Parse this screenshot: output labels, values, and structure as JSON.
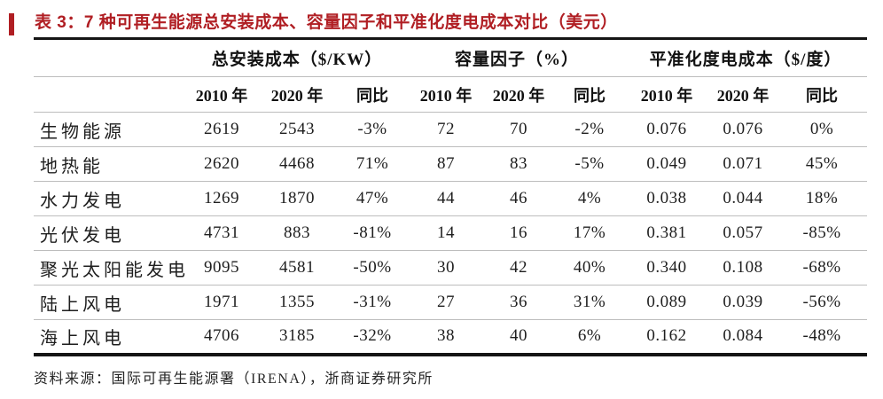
{
  "title": "表 3：7 种可再生能源总安装成本、容量因子和平准化度电成本对比（美元）",
  "source_note": "资料来源：国际可再生能源署（IRENA），浙商证券研究所",
  "colors": {
    "accent_red": "#B01E23",
    "rule_black": "#151515",
    "divider_gray": "#bdbdbd"
  },
  "table": {
    "groups": [
      {
        "label": "总安装成本（$/KW）"
      },
      {
        "label": "容量因子（%）"
      },
      {
        "label": "平准化度电成本（$/度）"
      }
    ],
    "columns": [
      "2010 年",
      "2020 年",
      "同比",
      "2010 年",
      "2020 年",
      "同比",
      "2010 年",
      "2020 年",
      "同比"
    ],
    "rows": [
      {
        "label": "生物能源",
        "values": [
          "2619",
          "2543",
          "-3%",
          "72",
          "70",
          "-2%",
          "0.076",
          "0.076",
          "0%"
        ]
      },
      {
        "label": "地热能",
        "values": [
          "2620",
          "4468",
          "71%",
          "87",
          "83",
          "-5%",
          "0.049",
          "0.071",
          "45%"
        ]
      },
      {
        "label": "水力发电",
        "values": [
          "1269",
          "1870",
          "47%",
          "44",
          "46",
          "4%",
          "0.038",
          "0.044",
          "18%"
        ]
      },
      {
        "label": "光伏发电",
        "values": [
          "4731",
          "883",
          "-81%",
          "14",
          "16",
          "17%",
          "0.381",
          "0.057",
          "-85%"
        ]
      },
      {
        "label": "聚光太阳能发电",
        "values": [
          "9095",
          "4581",
          "-50%",
          "30",
          "42",
          "40%",
          "0.340",
          "0.108",
          "-68%"
        ]
      },
      {
        "label": "陆上风电",
        "values": [
          "1971",
          "1355",
          "-31%",
          "27",
          "36",
          "31%",
          "0.089",
          "0.039",
          "-56%"
        ]
      },
      {
        "label": "海上风电",
        "values": [
          "4706",
          "3185",
          "-32%",
          "38",
          "40",
          "6%",
          "0.162",
          "0.084",
          "-48%"
        ]
      }
    ]
  }
}
